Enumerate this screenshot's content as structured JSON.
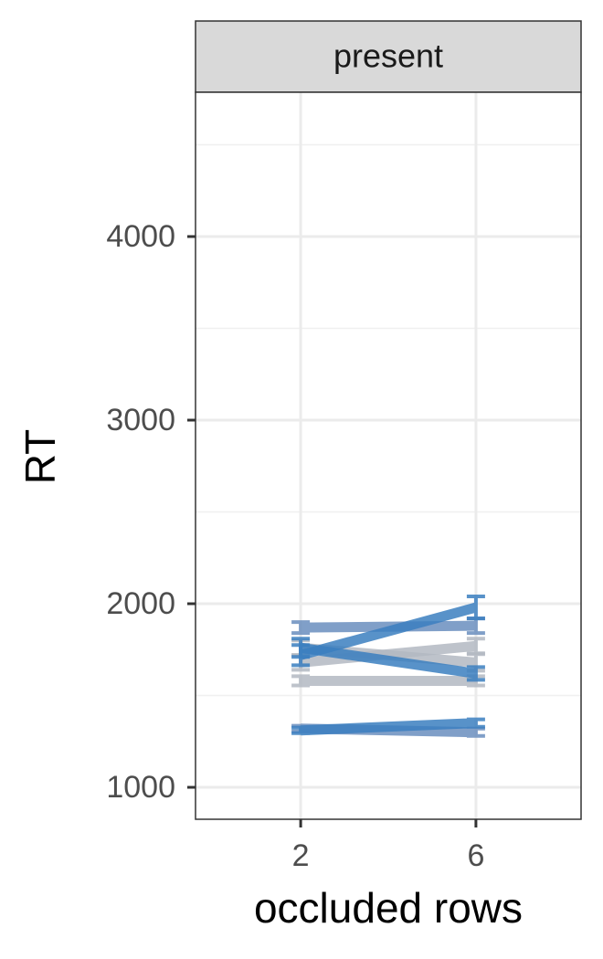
{
  "chart_data": {
    "type": "line",
    "strip_label": "present",
    "x_label": "occluded rows",
    "y_label": "RT",
    "x": [
      2,
      6
    ],
    "xlim": [
      -0.4,
      8.4
    ],
    "xticks": [
      2,
      6
    ],
    "ylim": [
      826,
      4786
    ],
    "yticks": [
      1000,
      2000,
      3000,
      4000
    ],
    "yminor": [
      1500,
      2500,
      3500,
      4500
    ],
    "grid": true,
    "series": [
      {
        "color": "#b3b9c2",
        "values": [
          1580,
          1580
        ],
        "errors": [
          25,
          25
        ]
      },
      {
        "color": "#b3b9c2",
        "values": [
          1680,
          1770
        ],
        "errors": [
          40,
          40
        ]
      },
      {
        "color": "#b3b9c2",
        "values": [
          1760,
          1680
        ],
        "errors": [
          40,
          45
        ]
      },
      {
        "color": "#6b8fbf",
        "values": [
          1320,
          1300
        ],
        "errors": [
          15,
          20
        ]
      },
      {
        "color": "#6b8fbf",
        "values": [
          1870,
          1880
        ],
        "errors": [
          30,
          40
        ]
      },
      {
        "color": "#3b7fc0",
        "values": [
          1310,
          1350
        ],
        "errors": [
          15,
          20
        ]
      },
      {
        "color": "#3b7fc0",
        "values": [
          1760,
          1620
        ],
        "errors": [
          50,
          35
        ]
      },
      {
        "color": "#3b7fc0",
        "values": [
          1720,
          1980
        ],
        "errors": [
          55,
          60
        ]
      }
    ]
  }
}
